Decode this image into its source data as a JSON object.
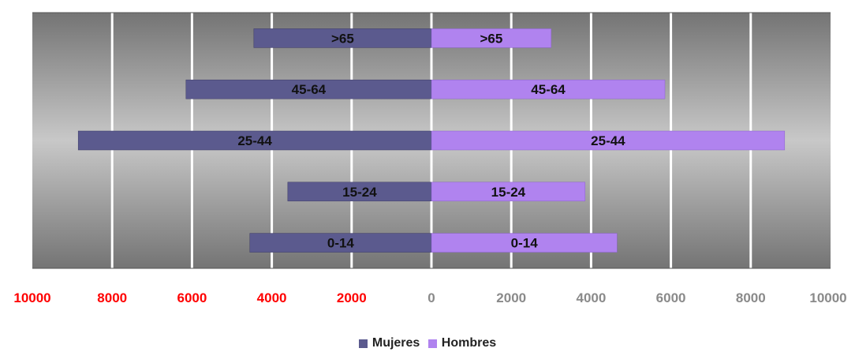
{
  "chart_data": {
    "type": "bar",
    "orientation": "horizontal-diverging",
    "categories": [
      ">65",
      "45-64",
      "25-44",
      "15-24",
      "0-14"
    ],
    "series": [
      {
        "name": "Mujeres",
        "values": [
          4450,
          6150,
          8850,
          3600,
          4550
        ],
        "color": "#5b5a8e"
      },
      {
        "name": "Hombres",
        "values": [
          3000,
          5850,
          8850,
          3850,
          4650
        ],
        "color": "#b083ef"
      }
    ],
    "xlim": [
      -10000,
      10000
    ],
    "xticks": [
      {
        "label": "10000",
        "value": -10000
      },
      {
        "label": "8000",
        "value": -8000
      },
      {
        "label": "6000",
        "value": -6000
      },
      {
        "label": "4000",
        "value": -4000
      },
      {
        "label": "2000",
        "value": -2000
      },
      {
        "label": "0",
        "value": 0
      },
      {
        "label": "2000",
        "value": 2000
      },
      {
        "label": "4000",
        "value": 4000
      },
      {
        "label": "6000",
        "value": 6000
      },
      {
        "label": "8000",
        "value": 8000
      },
      {
        "label": "10000",
        "value": 10000
      }
    ],
    "negative_tick_color": "#ff0000",
    "positive_tick_color": "#8a8a8a",
    "grid": true,
    "legend_position": "bottom",
    "legend": [
      {
        "label": "Mujeres",
        "color": "#5b5a8e"
      },
      {
        "label": "Hombres",
        "color": "#b083ef"
      }
    ]
  }
}
